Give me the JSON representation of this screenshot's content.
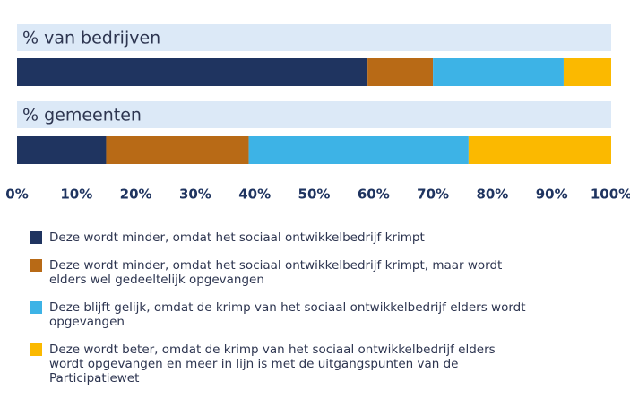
{
  "chart_data": {
    "type": "stacked_bar_horizontal",
    "categories": [
      "% van bedrijven",
      "% gemeenten"
    ],
    "series": [
      {
        "name": "Deze wordt minder, omdat het sociaal ontwikkelbedrijf krimpt",
        "color": "#1f3460",
        "values": [
          59,
          15
        ]
      },
      {
        "name": "Deze wordt minder, omdat het sociaal ontwikkelbedrijf krimpt, maar wordt elders wel gedeeltelijk opgevangen",
        "color": "#b86a16",
        "values": [
          11,
          24
        ]
      },
      {
        "name": "Deze blijft gelijk, omdat de krimp van het sociaal ontwikkelbedrijf elders wordt opgevangen",
        "color": "#3db3e6",
        "values": [
          22,
          37
        ]
      },
      {
        "name": "Deze wordt beter, omdat de krimp van het sociaal ontwikkelbedrijf elders wordt opgevangen en meer in lijn is met de uitgangspunten van de Participatiewet",
        "color": "#fbb900",
        "values": [
          8,
          24
        ]
      }
    ],
    "xlim": [
      0,
      100
    ],
    "xticks": [
      {
        "value": 0,
        "label": "0%"
      },
      {
        "value": 10,
        "label": "10%"
      },
      {
        "value": 20,
        "label": "20%"
      },
      {
        "value": 30,
        "label": "30%"
      },
      {
        "value": 40,
        "label": "40%"
      },
      {
        "value": 50,
        "label": "50%"
      },
      {
        "value": 60,
        "label": "60%"
      },
      {
        "value": 70,
        "label": "70%"
      },
      {
        "value": 80,
        "label": "80%"
      },
      {
        "value": 90,
        "label": "90%"
      },
      {
        "value": 100,
        "label": "100%"
      }
    ],
    "legend": "bottom-left"
  }
}
